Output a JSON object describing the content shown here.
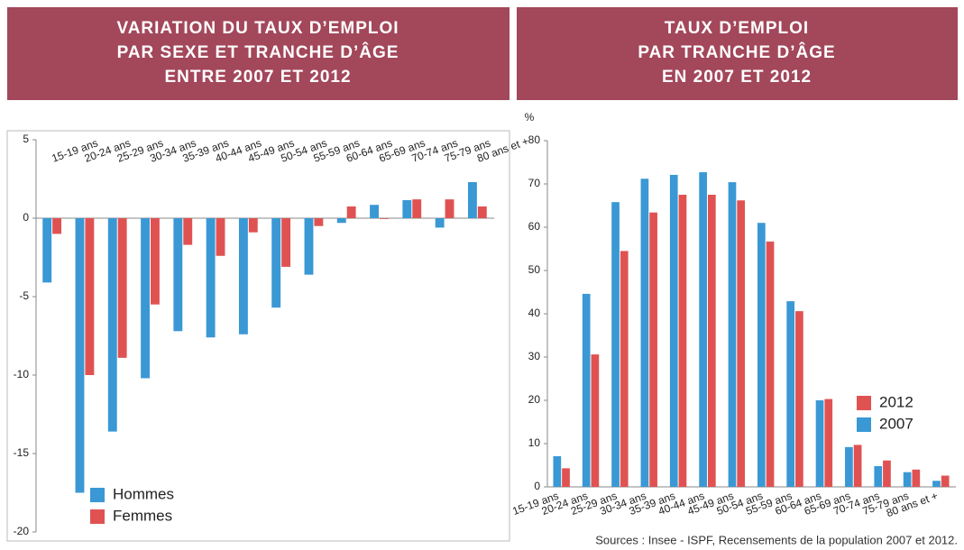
{
  "chart_data": [
    {
      "type": "bar",
      "title": [
        "VARIATION DU TAUX D’EMPLOI",
        "PAR SEXE ET TRANCHE D’ÂGE",
        "ENTRE 2007 ET 2012"
      ],
      "categories": [
        "15-19 ans",
        "20-24 ans",
        "25-29 ans",
        "30-34 ans",
        "35-39 ans",
        "40-44 ans",
        "45-49 ans",
        "50-54 ans",
        "55-59 ans",
        "60-64 ans",
        "65-69 ans",
        "70-74 ans",
        "75-79 ans",
        "80 ans et +"
      ],
      "series": [
        {
          "name": "Hommes",
          "color": "#3a98d4",
          "values": [
            -4.1,
            -17.5,
            -13.6,
            -10.2,
            -7.2,
            -7.6,
            -7.4,
            -5.7,
            -3.6,
            -0.3,
            0.85,
            1.15,
            -0.6,
            2.3
          ]
        },
        {
          "name": "Femmes",
          "color": "#e05252",
          "values": [
            -1.0,
            -10.0,
            -8.9,
            -5.5,
            -1.7,
            -2.4,
            -0.9,
            -3.1,
            -0.5,
            0.75,
            -0.05,
            1.2,
            1.2,
            0.75
          ]
        }
      ],
      "ylim": [
        -20,
        5
      ],
      "yticks": [
        -20,
        -15,
        -10,
        -5,
        0,
        5
      ],
      "legend": "bottom-left"
    },
    {
      "type": "bar",
      "title": [
        "TAUX D’EMPLOI",
        "PAR TRANCHE D’ÂGE",
        "EN 2007 ET 2012"
      ],
      "y_label": "%",
      "categories": [
        "15-19 ans",
        "20-24 ans",
        "25-29 ans",
        "30-34 ans",
        "35-39 ans",
        "40-44 ans",
        "45-49 ans",
        "50-54 ans",
        "55-59 ans",
        "60-64 ans",
        "65-69 ans",
        "70-74 ans",
        "75-79 ans",
        "80 ans et +"
      ],
      "series": [
        {
          "name": "2007",
          "color": "#3a98d4",
          "values": [
            7.1,
            44.6,
            65.8,
            71.2,
            72.1,
            72.7,
            70.4,
            61,
            42.9,
            20,
            9.2,
            4.8,
            3.4,
            1.4
          ]
        },
        {
          "name": "2012",
          "color": "#e05252",
          "values": [
            4.3,
            30.6,
            54.5,
            63.4,
            67.5,
            67.5,
            66.2,
            56.7,
            40.6,
            20.3,
            9.7,
            6.1,
            4,
            2.6
          ]
        }
      ],
      "ylim": [
        0,
        80
      ],
      "yticks": [
        0,
        10,
        20,
        30,
        40,
        50,
        60,
        70,
        80
      ],
      "legend": "right"
    }
  ],
  "source": "Sources : Insee - ISPF, Recensements de la population 2007 et 2012."
}
